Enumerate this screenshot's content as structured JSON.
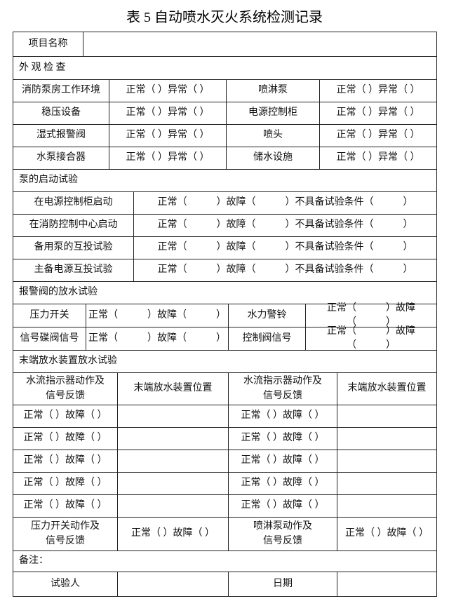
{
  "title": "表 5 自动喷水灭火系统检测记录",
  "project": {
    "label": "项目名称"
  },
  "appearance": {
    "heading": "外 观 检 查",
    "rows": [
      [
        "消防泵房工作环境",
        "正常（ ）异常（ ）",
        "喷淋泵",
        "正常（ ）异常（ ）"
      ],
      [
        "稳压设备",
        "正常（ ）异常（ ）",
        "电源控制柜",
        "正常（ ）异常（ ）"
      ],
      [
        "湿式报警阀",
        "正常（ ）异常（ ）",
        "喷头",
        "正常（ ）异常（ ）"
      ],
      [
        "水泵接合器",
        "正常（ ）异常（ ）",
        "储水设施",
        "正常（ ）异常（ ）"
      ]
    ]
  },
  "pump_start": {
    "heading": "泵的启动试验",
    "rows": [
      [
        "在电源控制柜启动",
        "正常（　　　）故障（　　　）不具备试验条件（　　　）"
      ],
      [
        "在消防控制中心启动",
        "正常（　　　）故障（　　　）不具备试验条件（　　　）"
      ],
      [
        "备用泵的互投试验",
        "正常（　　　）故障（　　　）不具备试验条件（　　　）"
      ],
      [
        "主备电源互投试验",
        "正常（　　　）故障（　　　）不具备试验条件（　　　）"
      ]
    ]
  },
  "alarm_valve": {
    "heading": "报警阀的放水试验",
    "rows": [
      [
        "压力开关",
        "正常（　　　）故障（　　　）",
        "水力警铃",
        "正常（　　　）故障（　　　）"
      ],
      [
        "信号碟阀信号",
        "正常（　　　）故障（　　　）",
        "控制阀信号",
        "正常（　　　）故障（　　　）"
      ]
    ]
  },
  "end_test": {
    "heading": "末端放水装置放水试验",
    "header": [
      "水流指示器动作及\n信号反馈",
      "末端放水装置位置",
      "水流指示器动作及\n信号反馈",
      "末端放水装置位置"
    ],
    "rows": [
      [
        "正常（ ）故障（ ）",
        "正常（ ）故障（ ）"
      ],
      [
        "正常（ ）故障（ ）",
        "正常（ ）故障（ ）"
      ],
      [
        "正常（ ）故障（ ）",
        "正常（ ）故障（ ）"
      ],
      [
        "正常（ ）故障（ ）",
        "正常（ ）故障（ ）"
      ],
      [
        "正常（ ）故障（ ）",
        "正常（ ）故障（ ）"
      ]
    ],
    "footer_row": [
      "压力开关动作及\n信号反馈",
      "正常（ ）故障（ ）",
      "喷淋泵动作及\n信号反馈",
      "正常（ ）故障（ ）"
    ]
  },
  "remarks": "备注：",
  "signature": [
    "试验人",
    "日期"
  ]
}
